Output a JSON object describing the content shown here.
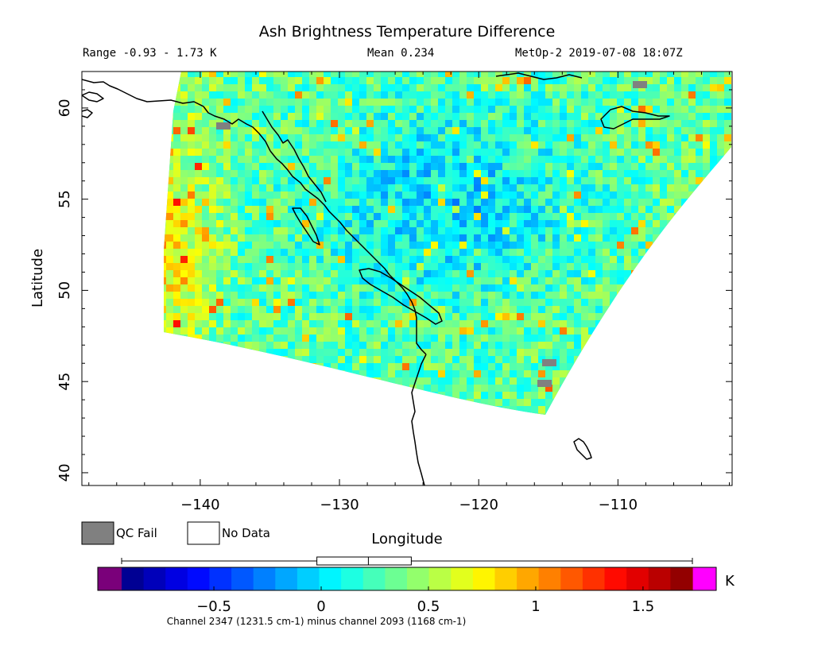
{
  "title": "Ash Brightness Temperature Difference",
  "stats": {
    "range": "Range -0.93 - 1.73 K",
    "mean": "Mean 0.234",
    "satellite": "MetOp-2 2019-07-08 18:07Z"
  },
  "axes": {
    "ylabel": "Latitude",
    "xlabel": "Longitude",
    "xticks": [
      -140,
      -130,
      -120,
      -110
    ],
    "yticks": [
      40,
      45,
      50,
      55,
      60
    ],
    "xlim": [
      -148.5,
      -101.8
    ],
    "ylim": [
      39.3,
      62.0
    ]
  },
  "legend": {
    "qc_fail": "QC Fail",
    "no_data": "No Data",
    "qc_fail_color": "#808080",
    "no_data_color": "#ffffff"
  },
  "colorbar": {
    "min": -0.93,
    "max": 1.73,
    "ticks": [
      -0.5,
      0,
      0.5,
      1,
      1.5
    ],
    "tick_labels": [
      "-0.5",
      "0",
      "0.5",
      "1",
      "1.5"
    ],
    "unit": "K",
    "under_color": "#7a007a",
    "over_color": "#ff00ff",
    "caption": "Channel 2347 (1231.5 cm-1) minus channel 2093 (1168 cm-1)",
    "boxplot": {
      "whisker_low": -0.93,
      "q1": -0.02,
      "median": 0.22,
      "q3": 0.42,
      "whisker_high": 1.73
    }
  }
}
